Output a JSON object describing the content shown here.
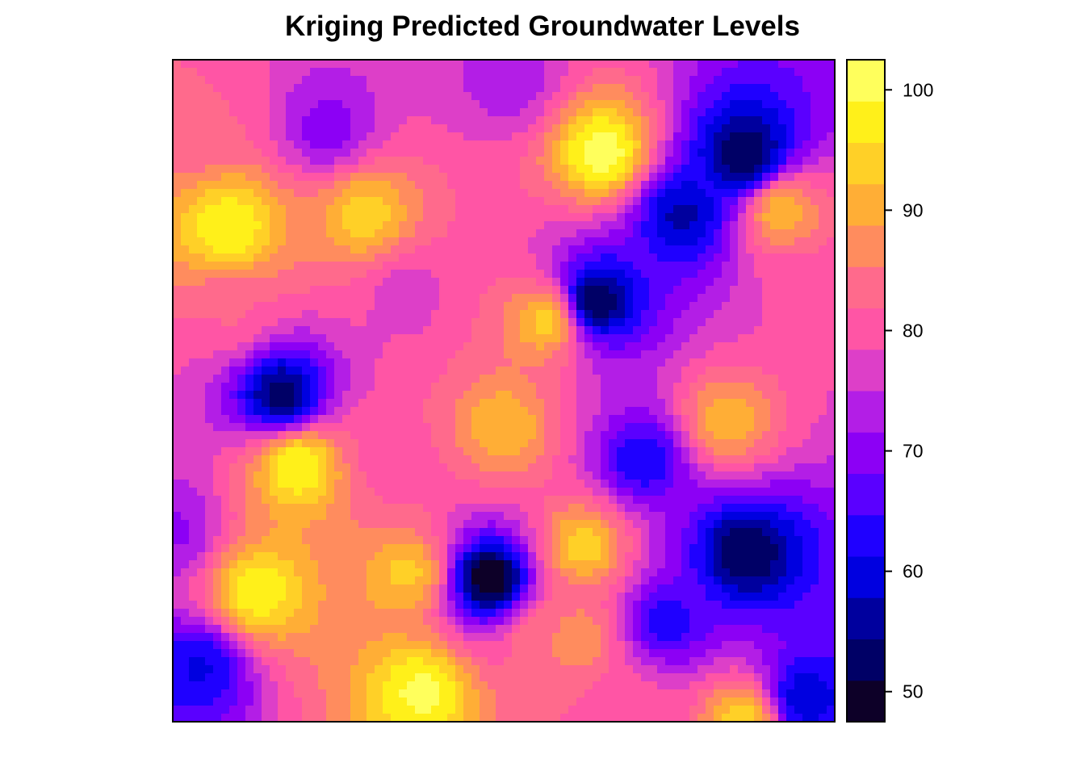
{
  "chart_data": {
    "type": "heatmap",
    "title": "Kriging Predicted Groundwater Levels",
    "xlabel": "",
    "ylabel": "",
    "x_axis_shown": false,
    "y_axis_shown": false,
    "legend": "right",
    "colorbar": {
      "ticks": [
        50,
        60,
        70,
        80,
        90,
        100
      ],
      "tick_labels": [
        "50",
        "60",
        "70",
        "80",
        "90",
        "100"
      ],
      "range": [
        47.5,
        102.5
      ],
      "bin_width": 3.4375,
      "colors": [
        "#0d0028",
        "#000066",
        "#00009e",
        "#0000e0",
        "#1f00ff",
        "#5a00ff",
        "#8c00f5",
        "#b31ee6",
        "#dd3fc8",
        "#ff55a5",
        "#ff6a8c",
        "#ff8c5e",
        "#ffae36",
        "#ffd027",
        "#fff01a",
        "#ffff5c"
      ]
    },
    "hotspots": [
      {
        "x": 0.235,
        "y": 0.895,
        "value": 70
      },
      {
        "x": 0.51,
        "y": 0.97,
        "value": 73
      },
      {
        "x": 0.65,
        "y": 0.86,
        "value": 101
      },
      {
        "x": 0.865,
        "y": 0.855,
        "value": 51
      },
      {
        "x": 0.77,
        "y": 0.765,
        "value": 57
      },
      {
        "x": 0.64,
        "y": 0.635,
        "value": 52
      },
      {
        "x": 0.085,
        "y": 0.745,
        "value": 99
      },
      {
        "x": 0.29,
        "y": 0.765,
        "value": 94
      },
      {
        "x": 0.565,
        "y": 0.605,
        "value": 93
      },
      {
        "x": 0.92,
        "y": 0.77,
        "value": 91
      },
      {
        "x": 0.165,
        "y": 0.495,
        "value": 53
      },
      {
        "x": 0.5,
        "y": 0.445,
        "value": 92
      },
      {
        "x": 0.19,
        "y": 0.385,
        "value": 99
      },
      {
        "x": 0.71,
        "y": 0.395,
        "value": 62
      },
      {
        "x": 0.835,
        "y": 0.455,
        "value": 91
      },
      {
        "x": 0.0,
        "y": 0.29,
        "value": 71
      },
      {
        "x": 0.355,
        "y": 0.225,
        "value": 93
      },
      {
        "x": 0.48,
        "y": 0.215,
        "value": 47
      },
      {
        "x": 0.62,
        "y": 0.265,
        "value": 94
      },
      {
        "x": 0.865,
        "y": 0.255,
        "value": 51
      },
      {
        "x": 0.745,
        "y": 0.15,
        "value": 63
      },
      {
        "x": 0.13,
        "y": 0.195,
        "value": 98
      },
      {
        "x": 0.04,
        "y": 0.08,
        "value": 61
      },
      {
        "x": 0.375,
        "y": 0.045,
        "value": 100
      },
      {
        "x": 0.61,
        "y": 0.125,
        "value": 88
      },
      {
        "x": 0.955,
        "y": 0.035,
        "value": 59
      },
      {
        "x": 0.86,
        "y": 0.0,
        "value": 94
      },
      {
        "x": 0.35,
        "y": 0.645,
        "value": 77
      },
      {
        "x": 0.09,
        "y": 0.62,
        "value": 82
      },
      {
        "x": 0.33,
        "y": 0.39,
        "value": 80
      },
      {
        "x": 0.03,
        "y": 0.9,
        "value": 82
      },
      {
        "x": 0.56,
        "y": 0.13,
        "value": 85
      },
      {
        "x": 0.96,
        "y": 0.65,
        "value": 80
      },
      {
        "x": 0.7,
        "y": 0.02,
        "value": 80
      }
    ]
  }
}
